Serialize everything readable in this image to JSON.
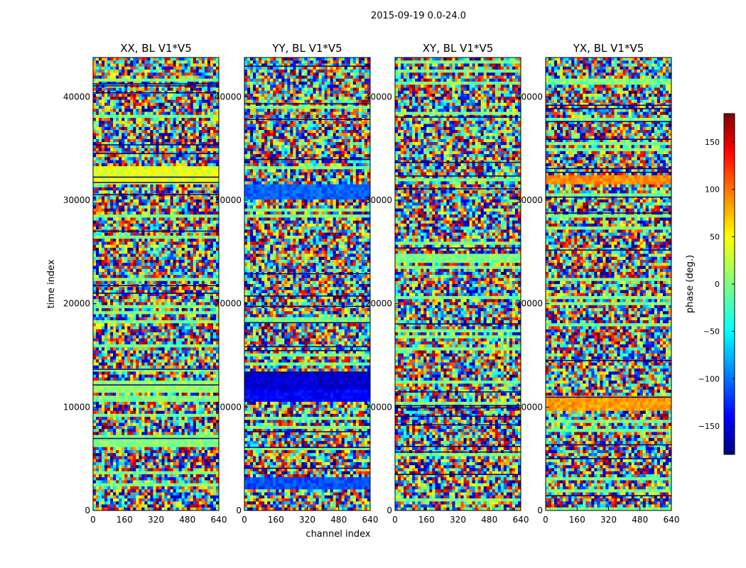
{
  "figure": {
    "suptitle": "2015-09-19 0.0-24.0",
    "xlabel": "channel index",
    "ylabel": "time index"
  },
  "colorbar": {
    "label": "phase (deg.)",
    "range": [
      -180,
      180
    ],
    "ticks": [
      "150",
      "100",
      "50",
      "0",
      "−50",
      "−100",
      "−150"
    ],
    "tick_values": [
      150,
      100,
      50,
      0,
      -50,
      -100,
      -150
    ],
    "colormap": [
      "#00007f",
      "#0000ff",
      "#007fff",
      "#00ffff",
      "#7fff7f",
      "#ffff00",
      "#ff7f00",
      "#ff0000",
      "#7f0000"
    ]
  },
  "chart_data": {
    "type": "heatmap",
    "xlabel": "channel index",
    "ylabel": "time index",
    "xlim": [
      0,
      640
    ],
    "ylim": [
      0,
      43800
    ],
    "xticks": [
      "0",
      "160",
      "320",
      "480",
      "640"
    ],
    "xtick_values": [
      0,
      160,
      320,
      480,
      640
    ],
    "yticks": [
      "0",
      "10000",
      "20000",
      "30000",
      "40000"
    ],
    "ytick_values": [
      0,
      10000,
      20000,
      30000,
      40000
    ],
    "value_label": "phase (deg.)",
    "value_range": [
      -180,
      180
    ],
    "panels": [
      {
        "title": "XX, BL V1*V5"
      },
      {
        "title": "YY, BL V1*V5"
      },
      {
        "title": "XY, BL V1*V5"
      },
      {
        "title": "YX, BL V1*V5"
      }
    ]
  }
}
